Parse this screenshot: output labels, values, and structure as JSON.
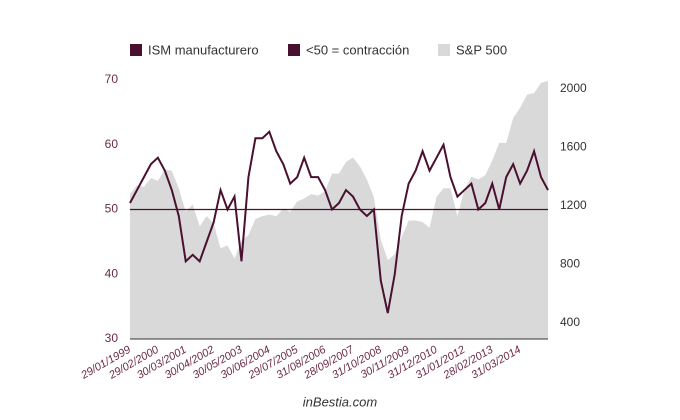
{
  "chart_data": {
    "type": "line",
    "source": "inBestia.com",
    "categories": [
      "29/01/1999",
      null,
      null,
      null,
      "29/02/2000",
      null,
      null,
      null,
      "30/03/2001",
      null,
      null,
      null,
      "30/04/2002",
      null,
      null,
      null,
      "30/05/2003",
      null,
      null,
      null,
      "30/06/2004",
      null,
      null,
      null,
      "29/07/2005",
      null,
      null,
      null,
      "31/08/2006",
      null,
      null,
      null,
      "28/09/2007",
      null,
      null,
      null,
      "31/10/2008",
      null,
      null,
      null,
      "30/11/2009",
      null,
      null,
      null,
      "31/12/2010",
      null,
      null,
      null,
      "31/01/2012",
      null,
      null,
      null,
      "28/02/2013",
      null,
      null,
      null,
      "31/03/2014",
      null,
      null,
      null,
      null
    ],
    "series": [
      {
        "name": "S&P 500",
        "color": "#d9d9d9",
        "axis": "y2",
        "area": true,
        "values": [
          1280,
          1340,
          1330,
          1390,
          1370,
          1450,
          1440,
          1320,
          1160,
          1210,
          1060,
          1130,
          1080,
          910,
          930,
          840,
          960,
          1000,
          1110,
          1130,
          1140,
          1130,
          1180,
          1160,
          1230,
          1250,
          1280,
          1270,
          1300,
          1420,
          1420,
          1500,
          1530,
          1470,
          1380,
          1260,
          970,
          830,
          870,
          990,
          1100,
          1100,
          1090,
          1050,
          1260,
          1320,
          1320,
          1130,
          1310,
          1400,
          1380,
          1410,
          1510,
          1630,
          1630,
          1800,
          1870,
          1960,
          1970,
          2040,
          2055
        ]
      },
      {
        "name": "ISM manufacturero",
        "color": "#4a1030",
        "values": [
          51,
          53,
          55,
          57,
          58,
          56,
          53,
          49,
          42,
          43,
          42,
          45,
          48,
          53,
          50,
          52,
          42,
          55,
          61,
          61,
          62,
          59,
          57,
          54,
          55,
          58,
          55,
          55,
          53,
          50,
          51,
          53,
          52,
          50,
          49,
          50,
          39,
          34,
          40,
          49,
          54,
          56,
          59,
          56,
          58,
          60,
          55,
          52,
          53,
          54,
          50,
          51,
          54,
          50,
          55,
          57,
          54,
          56,
          59,
          55,
          53
        ]
      }
    ],
    "threshold": {
      "name": "<50 = contracción",
      "color": "#4a1030",
      "value": 50
    },
    "ylim": [
      30,
      70
    ],
    "yticks": [
      30,
      40,
      50,
      60,
      70
    ],
    "y2lim": [
      290,
      2060
    ],
    "y2ticks": [
      400,
      800,
      1200,
      1600,
      2000
    ]
  }
}
